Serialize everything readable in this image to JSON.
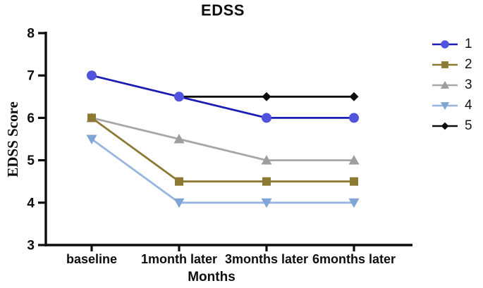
{
  "chart_data": {
    "type": "line",
    "title": "EDSS",
    "xlabel": "Months",
    "ylabel": "EDSS Score",
    "categories": [
      "baseline",
      "1month later",
      "3months later",
      "6months later"
    ],
    "yticks": [
      3,
      4,
      5,
      6,
      7,
      8
    ],
    "ylim": [
      3,
      8
    ],
    "grid": false,
    "legend_position": "right",
    "axis_color": "#0d0d0d",
    "background_color": "#ffffff",
    "series": [
      {
        "name": "1",
        "marker": "circle",
        "line_color": "#1c1db2",
        "marker_color": "#5153dc",
        "values": [
          7,
          6.5,
          6,
          6
        ]
      },
      {
        "name": "2",
        "marker": "square",
        "line_color": "#8c7933",
        "marker_color": "#8c7933",
        "values": [
          6,
          4.5,
          4.5,
          4.5
        ]
      },
      {
        "name": "3",
        "marker": "triangle-up",
        "line_color": "#a7a7a7",
        "marker_color": "#9e9e9e",
        "values": [
          6,
          5.5,
          5,
          5
        ]
      },
      {
        "name": "4",
        "marker": "triangle-down",
        "line_color": "#98b5e0",
        "marker_color": "#7fa5d6",
        "values": [
          5.5,
          4,
          4,
          4
        ]
      },
      {
        "name": "5",
        "marker": "diamond",
        "line_color": "#0c0c0c",
        "marker_color": "#0c0c0c",
        "values": [
          null,
          6.5,
          6.5,
          6.5
        ]
      }
    ]
  }
}
